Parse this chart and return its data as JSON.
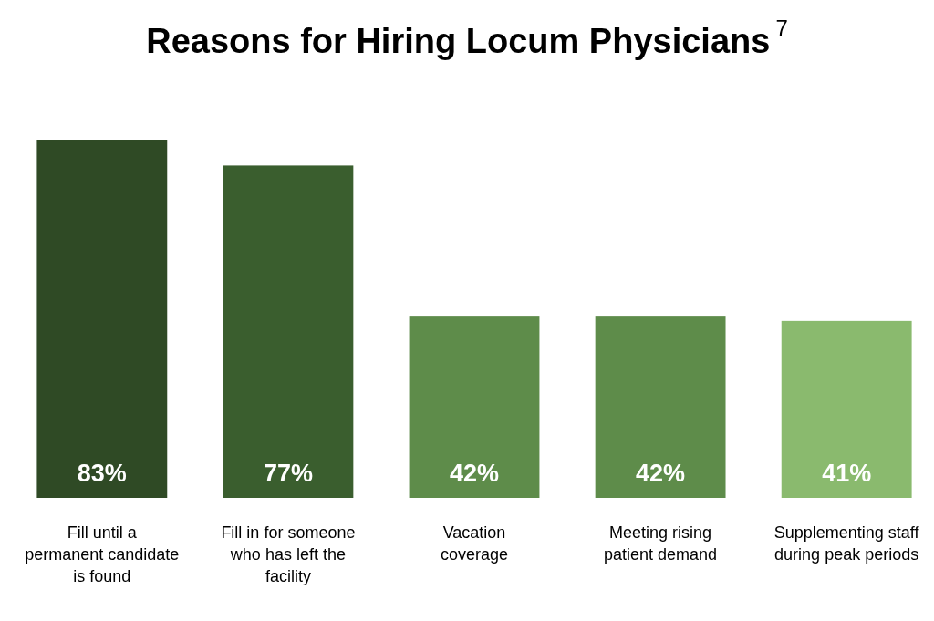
{
  "chart_data": {
    "type": "bar",
    "title": "Reasons for Hiring Locum Physicians$^{7}$",
    "categories": [
      "Fill until a permanent candidate is found",
      "Fill in for someone who has left the facility",
      "Vacation coverage",
      "Meeting rising patient demand",
      "Supplementing staff during peak periods"
    ],
    "values": [
      83,
      77,
      42,
      42,
      41
    ],
    "colors": [
      "#2f4a25",
      "#3a5e2e",
      "#5e8c4a",
      "#5e8c4a",
      "#8aba6e"
    ],
    "value_labels": [
      "83%",
      "77%",
      "42%",
      "42%",
      "41%"
    ]
  }
}
